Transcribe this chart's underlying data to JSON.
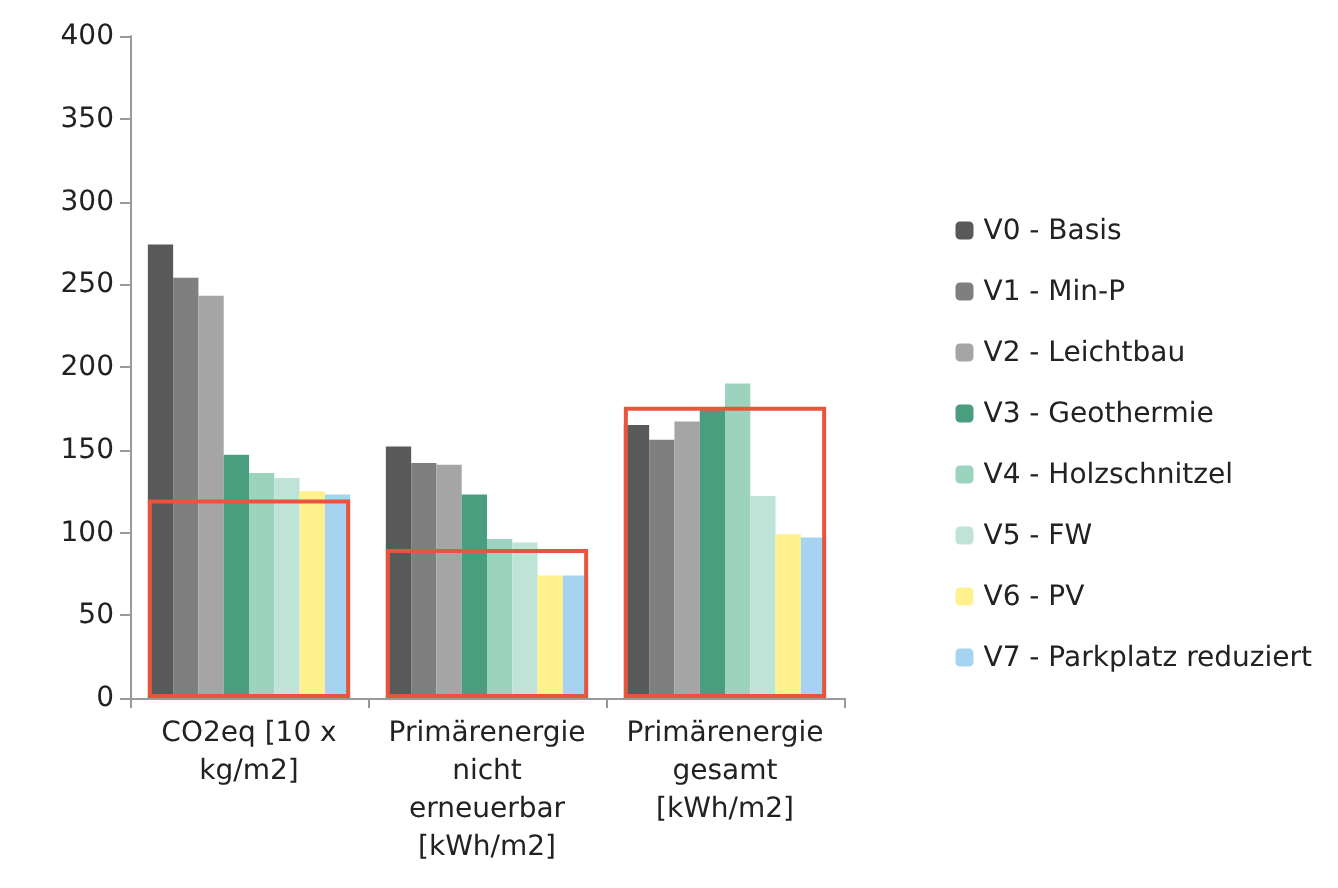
{
  "chart_data": {
    "type": "bar",
    "categories": [
      "CO2eq [10 x kg/m2]",
      "Primärenergie nicht erneuerbar [kWh/m2]",
      "Primärenergie gesamt [kWh/m2]"
    ],
    "series": [
      {
        "name": "V0 - Basis",
        "color": "#595959",
        "values": [
          274,
          152,
          165
        ]
      },
      {
        "name": "V1 - Min-P",
        "color": "#7f7f7f",
        "values": [
          254,
          142,
          156
        ]
      },
      {
        "name": "V2 - Leichtbau",
        "color": "#a5a5a5",
        "values": [
          243,
          141,
          167
        ]
      },
      {
        "name": "V3 - Geothermie",
        "color": "#4a9e80",
        "values": [
          147,
          123,
          175
        ]
      },
      {
        "name": "V4 - Holzschnitzel",
        "color": "#9bd3bf",
        "values": [
          136,
          96,
          190
        ]
      },
      {
        "name": "V5 - FW",
        "color": "#bfe3d6",
        "values": [
          133,
          94,
          122
        ]
      },
      {
        "name": "V6 - PV",
        "color": "#fff18e",
        "values": [
          125,
          74,
          99
        ]
      },
      {
        "name": "V7 - Parkplatz reduziert",
        "color": "#a6d3ef",
        "values": [
          123,
          74,
          97
        ]
      },
      {
        "type": "bar",
        "color": "#e8553c",
        "values": [
          120,
          90,
          176
        ]
      }
    ],
    "ylim": [
      0,
      400
    ],
    "yticks": [
      0,
      50,
      100,
      150,
      200,
      250,
      300,
      350,
      400
    ],
    "grid": false,
    "legend": "right"
  }
}
